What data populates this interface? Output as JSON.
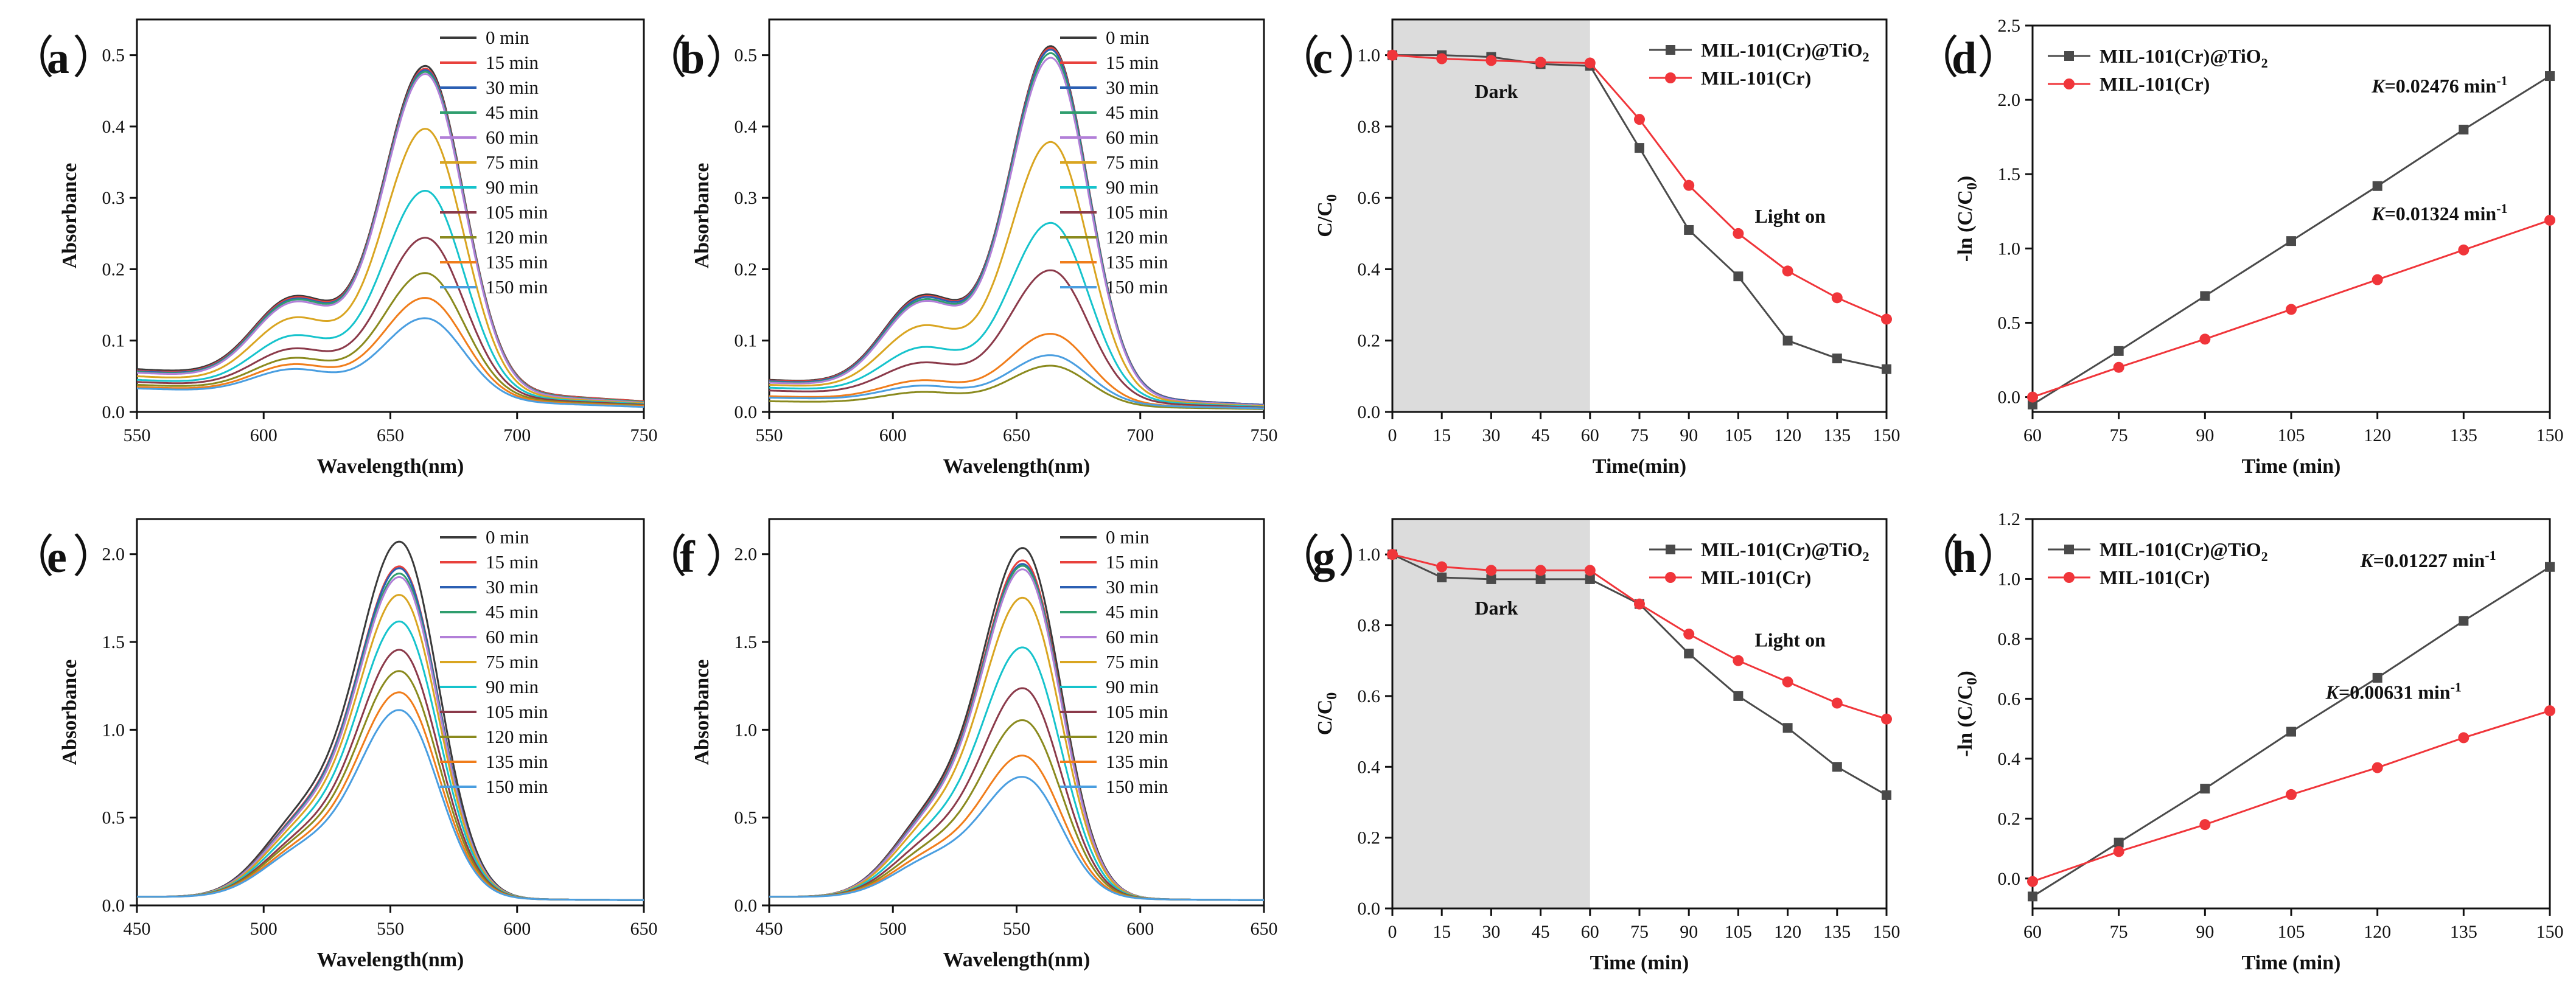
{
  "panel_labels": [
    "（a）",
    "（b）",
    "（c）",
    "（d）",
    "（e）",
    "（f）",
    "（g）",
    "（h）"
  ],
  "chart_data": [
    {
      "panel": "a",
      "type": "line",
      "xlabel": "Wavelength(nm)",
      "ylabel": "Absorbance",
      "xlim": [
        550,
        750
      ],
      "ylim": [
        0,
        0.55
      ],
      "xticks": [
        550,
        600,
        650,
        700,
        750
      ],
      "yticks": [
        0.0,
        0.1,
        0.2,
        0.3,
        0.4,
        0.5
      ],
      "legend_position": "top-right",
      "peak_nm": 664,
      "shoulder_nm": 612,
      "series": [
        {
          "name": "0 min",
          "color": "#3a3a3a",
          "peak": 0.465,
          "shoulder": 0.24,
          "base_start": 0.06,
          "tail": 0.015
        },
        {
          "name": "15 min",
          "color": "#e8413c",
          "peak": 0.462,
          "shoulder": 0.238,
          "base_start": 0.058,
          "tail": 0.015
        },
        {
          "name": "30 min",
          "color": "#2b5fb3",
          "peak": 0.46,
          "shoulder": 0.236,
          "base_start": 0.057,
          "tail": 0.014
        },
        {
          "name": "45 min",
          "color": "#2f9e6e",
          "peak": 0.458,
          "shoulder": 0.234,
          "base_start": 0.056,
          "tail": 0.014
        },
        {
          "name": "60 min",
          "color": "#b27fd8",
          "peak": 0.455,
          "shoulder": 0.23,
          "base_start": 0.055,
          "tail": 0.013
        },
        {
          "name": "75 min",
          "color": "#d9a521",
          "peak": 0.38,
          "shoulder": 0.195,
          "base_start": 0.05,
          "tail": 0.012
        },
        {
          "name": "90 min",
          "color": "#16c3cc",
          "peak": 0.295,
          "shoulder": 0.155,
          "base_start": 0.045,
          "tail": 0.011
        },
        {
          "name": "105 min",
          "color": "#8b3a4a",
          "peak": 0.23,
          "shoulder": 0.125,
          "base_start": 0.042,
          "tail": 0.01
        },
        {
          "name": "120 min",
          "color": "#8a8a1e",
          "peak": 0.182,
          "shoulder": 0.105,
          "base_start": 0.038,
          "tail": 0.009
        },
        {
          "name": "135 min",
          "color": "#f07d1b",
          "peak": 0.148,
          "shoulder": 0.092,
          "base_start": 0.035,
          "tail": 0.008
        },
        {
          "name": "150 min",
          "color": "#4a9ee0",
          "peak": 0.12,
          "shoulder": 0.082,
          "base_start": 0.033,
          "tail": 0.007
        }
      ]
    },
    {
      "panel": "b",
      "type": "line",
      "xlabel": "Wavelength(nm)",
      "ylabel": "Absorbance",
      "xlim": [
        550,
        750
      ],
      "ylim": [
        0,
        0.55
      ],
      "xticks": [
        550,
        600,
        650,
        700,
        750
      ],
      "yticks": [
        0.0,
        0.1,
        0.2,
        0.3,
        0.4,
        0.5
      ],
      "legend_position": "top-right",
      "peak_nm": 664,
      "shoulder_nm": 612,
      "series": [
        {
          "name": "0 min",
          "color": "#3a3a3a",
          "peak": 0.497,
          "shoulder": 0.255,
          "base_start": 0.045,
          "tail": 0.01
        },
        {
          "name": "15 min",
          "color": "#e8413c",
          "peak": 0.495,
          "shoulder": 0.252,
          "base_start": 0.044,
          "tail": 0.01
        },
        {
          "name": "30 min",
          "color": "#2b5fb3",
          "peak": 0.493,
          "shoulder": 0.25,
          "base_start": 0.043,
          "tail": 0.01
        },
        {
          "name": "45 min",
          "color": "#2f9e6e",
          "peak": 0.488,
          "shoulder": 0.246,
          "base_start": 0.042,
          "tail": 0.009
        },
        {
          "name": "60 min",
          "color": "#b27fd8",
          "peak": 0.482,
          "shoulder": 0.242,
          "base_start": 0.041,
          "tail": 0.009
        },
        {
          "name": "75 min",
          "color": "#d9a521",
          "peak": 0.365,
          "shoulder": 0.185,
          "base_start": 0.038,
          "tail": 0.008
        },
        {
          "name": "90 min",
          "color": "#16c3cc",
          "peak": 0.253,
          "shoulder": 0.135,
          "base_start": 0.034,
          "tail": 0.007
        },
        {
          "name": "105 min",
          "color": "#8b3a4a",
          "peak": 0.188,
          "shoulder": 0.1,
          "base_start": 0.03,
          "tail": 0.006
        },
        {
          "name": "120 min",
          "color": "#8a8a1e",
          "peak": 0.06,
          "shoulder": 0.038,
          "base_start": 0.015,
          "tail": 0.004
        },
        {
          "name": "135 min",
          "color": "#f07d1b",
          "peak": 0.102,
          "shoulder": 0.062,
          "base_start": 0.022,
          "tail": 0.005
        },
        {
          "name": "150 min",
          "color": "#4a9ee0",
          "peak": 0.073,
          "shoulder": 0.05,
          "base_start": 0.02,
          "tail": 0.005
        }
      ]
    },
    {
      "panel": "c",
      "type": "line",
      "xlabel": "Time(min)",
      "ylabel": "C/C",
      "ylabel_sub": "0",
      "xlim": [
        0,
        150
      ],
      "ylim": [
        0,
        1.1
      ],
      "xticks": [
        0,
        15,
        30,
        45,
        60,
        75,
        90,
        105,
        120,
        135,
        150
      ],
      "yticks": [
        0.0,
        0.2,
        0.4,
        0.6,
        0.8,
        1.0
      ],
      "shaded_region": [
        0,
        60
      ],
      "annotations": [
        {
          "text": "Dark",
          "x": 25,
          "y": 0.88
        },
        {
          "text": "Light on",
          "x": 110,
          "y": 0.53
        }
      ],
      "legend_position": "top-right",
      "series": [
        {
          "name": "MIL-101(Cr)@TiO",
          "name_sub": "2",
          "color": "#4a4a4a",
          "marker": "square",
          "x": [
            0,
            15,
            30,
            45,
            60,
            75,
            90,
            105,
            120,
            135,
            150
          ],
          "y": [
            1.0,
            1.0,
            0.995,
            0.975,
            0.97,
            0.74,
            0.51,
            0.38,
            0.2,
            0.15,
            0.12
          ]
        },
        {
          "name": "MIL-101(Cr)",
          "color": "#f0353a",
          "marker": "circle",
          "x": [
            0,
            15,
            30,
            45,
            60,
            75,
            90,
            105,
            120,
            135,
            150
          ],
          "y": [
            1.0,
            0.99,
            0.985,
            0.98,
            0.978,
            0.82,
            0.635,
            0.5,
            0.395,
            0.32,
            0.26
          ]
        }
      ]
    },
    {
      "panel": "d",
      "type": "line",
      "xlabel": "Time (min)",
      "ylabel": "-ln (C/C",
      "ylabel_sub": "0",
      "ylabel_tail": ")",
      "xlim": [
        60,
        150
      ],
      "ylim": [
        -0.1,
        2.5
      ],
      "xticks": [
        60,
        75,
        90,
        105,
        120,
        135,
        150
      ],
      "yticks": [
        0.0,
        0.5,
        1.0,
        1.5,
        2.0,
        2.5
      ],
      "legend_position": "top-left",
      "annotations": [
        {
          "prefix": "K",
          "text": "=0.02476 min",
          "sup": "-1",
          "x": 119,
          "y": 2.05
        },
        {
          "prefix": "K",
          "text": "=0.01324 min",
          "sup": "-1",
          "x": 119,
          "y": 1.19
        }
      ],
      "series": [
        {
          "name": "MIL-101(Cr)@TiO",
          "name_sub": "2",
          "color": "#4a4a4a",
          "marker": "square",
          "x": [
            60,
            75,
            90,
            105,
            120,
            135,
            150
          ],
          "y": [
            -0.05,
            0.31,
            0.68,
            1.05,
            1.42,
            1.8,
            2.16
          ]
        },
        {
          "name": "MIL-101(Cr)",
          "color": "#f0353a",
          "marker": "circle",
          "x": [
            60,
            75,
            90,
            105,
            120,
            135,
            150
          ],
          "y": [
            0.0,
            0.2,
            0.39,
            0.59,
            0.79,
            0.99,
            1.19
          ]
        }
      ]
    },
    {
      "panel": "e",
      "type": "line",
      "xlabel": "Wavelength(nm)",
      "ylabel": "Absorbance",
      "xlim": [
        450,
        650
      ],
      "ylim": [
        0,
        2.2
      ],
      "xticks": [
        450,
        500,
        550,
        600,
        650
      ],
      "yticks": [
        0.0,
        0.5,
        1.0,
        1.5,
        2.0
      ],
      "legend_position": "top-right",
      "peak_nm": 554,
      "shoulder_nm": 515,
      "series": [
        {
          "name": "0 min",
          "color": "#3a3a3a",
          "peak": 2.04,
          "shoulder": 0.78,
          "base_start": 0.05,
          "tail": 0.03
        },
        {
          "name": "15 min",
          "color": "#e8413c",
          "peak": 1.9,
          "shoulder": 0.74,
          "base_start": 0.05,
          "tail": 0.03
        },
        {
          "name": "30 min",
          "color": "#2b5fb3",
          "peak": 1.89,
          "shoulder": 0.73,
          "base_start": 0.05,
          "tail": 0.03
        },
        {
          "name": "45 min",
          "color": "#2f9e6e",
          "peak": 1.86,
          "shoulder": 0.72,
          "base_start": 0.05,
          "tail": 0.03
        },
        {
          "name": "60 min",
          "color": "#b27fd8",
          "peak": 1.84,
          "shoulder": 0.71,
          "base_start": 0.05,
          "tail": 0.03
        },
        {
          "name": "75 min",
          "color": "#d9a521",
          "peak": 1.74,
          "shoulder": 0.67,
          "base_start": 0.05,
          "tail": 0.03
        },
        {
          "name": "90 min",
          "color": "#16c3cc",
          "peak": 1.59,
          "shoulder": 0.62,
          "base_start": 0.05,
          "tail": 0.03
        },
        {
          "name": "105 min",
          "color": "#8b3a4a",
          "peak": 1.43,
          "shoulder": 0.57,
          "base_start": 0.05,
          "tail": 0.03
        },
        {
          "name": "120 min",
          "color": "#8a8a1e",
          "peak": 1.31,
          "shoulder": 0.54,
          "base_start": 0.05,
          "tail": 0.03
        },
        {
          "name": "135 min",
          "color": "#f07d1b",
          "peak": 1.19,
          "shoulder": 0.5,
          "base_start": 0.05,
          "tail": 0.03
        },
        {
          "name": "150 min",
          "color": "#4a9ee0",
          "peak": 1.09,
          "shoulder": 0.47,
          "base_start": 0.05,
          "tail": 0.03
        }
      ]
    },
    {
      "panel": "f",
      "type": "line",
      "xlabel": "Wavelength(nm)",
      "ylabel": "Absorbance",
      "xlim": [
        450,
        650
      ],
      "ylim": [
        0,
        2.2
      ],
      "xticks": [
        450,
        500,
        550,
        600,
        650
      ],
      "yticks": [
        0.0,
        0.5,
        1.0,
        1.5,
        2.0
      ],
      "legend_position": "top-right",
      "peak_nm": 553,
      "shoulder_nm": 515,
      "series": [
        {
          "name": "0 min",
          "color": "#3a3a3a",
          "peak": 2.0,
          "shoulder": 0.78,
          "base_start": 0.05,
          "tail": 0.03
        },
        {
          "name": "15 min",
          "color": "#e8413c",
          "peak": 1.93,
          "shoulder": 0.76,
          "base_start": 0.05,
          "tail": 0.03
        },
        {
          "name": "30 min",
          "color": "#2b5fb3",
          "peak": 1.91,
          "shoulder": 0.75,
          "base_start": 0.05,
          "tail": 0.03
        },
        {
          "name": "45 min",
          "color": "#2f9e6e",
          "peak": 1.9,
          "shoulder": 0.74,
          "base_start": 0.05,
          "tail": 0.03
        },
        {
          "name": "60 min",
          "color": "#b27fd8",
          "peak": 1.88,
          "shoulder": 0.73,
          "base_start": 0.05,
          "tail": 0.03
        },
        {
          "name": "75 min",
          "color": "#d9a521",
          "peak": 1.72,
          "shoulder": 0.68,
          "base_start": 0.05,
          "tail": 0.03
        },
        {
          "name": "90 min",
          "color": "#16c3cc",
          "peak": 1.44,
          "shoulder": 0.6,
          "base_start": 0.05,
          "tail": 0.03
        },
        {
          "name": "105 min",
          "color": "#8b3a4a",
          "peak": 1.21,
          "shoulder": 0.53,
          "base_start": 0.05,
          "tail": 0.03
        },
        {
          "name": "120 min",
          "color": "#8a8a1e",
          "peak": 1.03,
          "shoulder": 0.47,
          "base_start": 0.05,
          "tail": 0.03
        },
        {
          "name": "135 min",
          "color": "#f07d1b",
          "peak": 0.83,
          "shoulder": 0.42,
          "base_start": 0.05,
          "tail": 0.03
        },
        {
          "name": "150 min",
          "color": "#4a9ee0",
          "peak": 0.71,
          "shoulder": 0.38,
          "base_start": 0.05,
          "tail": 0.03
        }
      ]
    },
    {
      "panel": "g",
      "type": "line",
      "xlabel": "Time (min)",
      "ylabel": "C/C",
      "ylabel_sub": "0",
      "xlim": [
        0,
        150
      ],
      "ylim": [
        0,
        1.1
      ],
      "xticks": [
        0,
        15,
        30,
        45,
        60,
        75,
        90,
        105,
        120,
        135,
        150
      ],
      "yticks": [
        0.0,
        0.2,
        0.4,
        0.6,
        0.8,
        1.0
      ],
      "shaded_region": [
        0,
        60
      ],
      "annotations": [
        {
          "text": "Dark",
          "x": 25,
          "y": 0.83
        },
        {
          "text": "Light on",
          "x": 110,
          "y": 0.74
        }
      ],
      "legend_position": "top-right",
      "series": [
        {
          "name": "MIL-101(Cr)@TiO",
          "name_sub": "2",
          "color": "#4a4a4a",
          "marker": "square",
          "x": [
            0,
            15,
            30,
            45,
            60,
            75,
            90,
            105,
            120,
            135,
            150
          ],
          "y": [
            1.0,
            0.935,
            0.93,
            0.93,
            0.93,
            0.86,
            0.72,
            0.6,
            0.51,
            0.4,
            0.32
          ]
        },
        {
          "name": "MIL-101(Cr)",
          "color": "#f0353a",
          "marker": "circle",
          "x": [
            0,
            15,
            30,
            45,
            60,
            75,
            90,
            105,
            120,
            135,
            150
          ],
          "y": [
            1.0,
            0.965,
            0.955,
            0.955,
            0.955,
            0.86,
            0.775,
            0.7,
            0.64,
            0.58,
            0.535
          ]
        }
      ]
    },
    {
      "panel": "h",
      "type": "line",
      "xlabel": "Time (min)",
      "ylabel": "-ln (C/C",
      "ylabel_sub": "0",
      "ylabel_tail": ")",
      "xlim": [
        60,
        150
      ],
      "ylim": [
        -0.1,
        1.2
      ],
      "xticks": [
        60,
        75,
        90,
        105,
        120,
        135,
        150
      ],
      "yticks": [
        0.0,
        0.2,
        0.4,
        0.6,
        0.8,
        1.0,
        1.2
      ],
      "legend_position": "top-left",
      "annotations": [
        {
          "prefix": "K",
          "text": "=0.01227 min",
          "sup": "-1",
          "x": 117,
          "y": 1.04
        },
        {
          "prefix": "K",
          "text": "=0.00631 min",
          "sup": "-1",
          "x": 111,
          "y": 0.6
        }
      ],
      "series": [
        {
          "name": "MIL-101(Cr)@TiO",
          "name_sub": "2",
          "color": "#4a4a4a",
          "marker": "square",
          "x": [
            60,
            75,
            90,
            105,
            120,
            135,
            150
          ],
          "y": [
            -0.06,
            0.12,
            0.3,
            0.49,
            0.67,
            0.86,
            1.04
          ]
        },
        {
          "name": "MIL-101(Cr)",
          "color": "#f0353a",
          "marker": "circle",
          "x": [
            60,
            75,
            90,
            105,
            120,
            135,
            150
          ],
          "y": [
            -0.01,
            0.09,
            0.18,
            0.28,
            0.37,
            0.47,
            0.56
          ]
        }
      ]
    }
  ]
}
